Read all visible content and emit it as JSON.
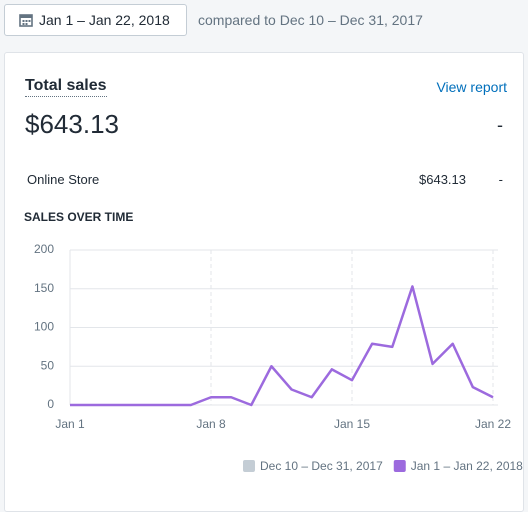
{
  "date_range": "Jan 1 – Jan 22, 2018",
  "comparison": "compared to Dec 10 – Dec 31, 2017",
  "card": {
    "title": "Total sales",
    "link": "View report",
    "total": "$643.13",
    "change": "-",
    "rows": [
      [
        "Online Store",
        "$643.13",
        "-"
      ]
    ]
  },
  "chart_data": {
    "type": "line",
    "title": "SALES OVER TIME",
    "categories": [
      "Jan 1",
      null,
      null,
      null,
      null,
      null,
      null,
      "Jan 8",
      null,
      null,
      null,
      null,
      null,
      null,
      "Jan 15",
      null,
      null,
      null,
      null,
      null,
      null,
      "Jan 22"
    ],
    "series": [
      {
        "name": "Dec 10 – Dec 31, 2017",
        "color": "#c4cdd5",
        "values": [
          null,
          null,
          null,
          null,
          null,
          null,
          null,
          null,
          null,
          null,
          null,
          null,
          null,
          null,
          null,
          null,
          null,
          null,
          null,
          null,
          null,
          null
        ]
      },
      {
        "name": "Jan 1 – Jan 22, 2018",
        "color": "#9c6ade",
        "values": [
          0,
          0,
          0,
          0,
          0,
          0,
          0,
          10,
          10,
          0,
          50,
          20,
          10,
          46,
          32,
          79,
          75,
          153,
          53,
          79,
          23,
          10
        ]
      }
    ],
    "ylim": [
      0,
      200
    ],
    "yticks": [
      0,
      50,
      100,
      150,
      200
    ],
    "grid": true
  }
}
